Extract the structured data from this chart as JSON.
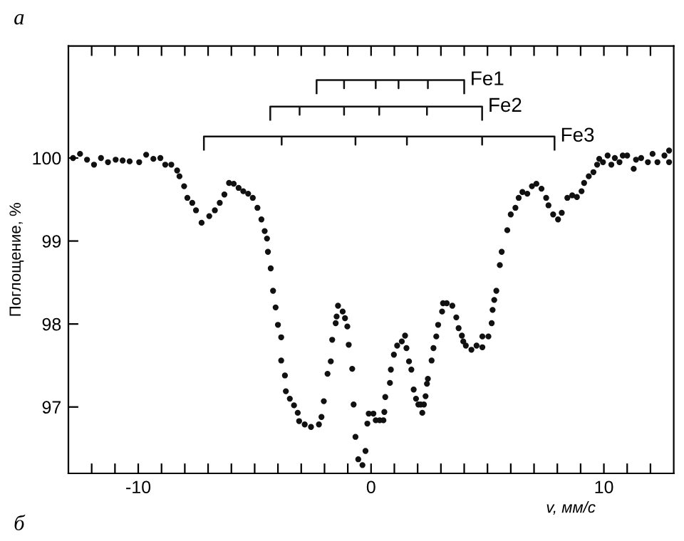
{
  "chart_data": {
    "type": "scatter",
    "xlabel": "v, мм/с",
    "ylabel": "Поглощение, %",
    "annotations": [
      "а",
      "б",
      {
        "text": "Fe1",
        "x": 4.0,
        "y": 100.94
      },
      {
        "text": "Fe2",
        "x": 4.77,
        "y": 100.62
      },
      {
        "text": "Fe3",
        "x": 7.88,
        "y": 100.26
      }
    ],
    "xlim": [
      -13,
      13
    ],
    "ylim": [
      96.2,
      101.35
    ],
    "xticks": [
      {
        "value": -12,
        "label": null
      },
      {
        "value": -11,
        "label": null
      },
      -10,
      {
        "value": -9,
        "label": null
      },
      {
        "value": -8,
        "label": null
      },
      {
        "value": -7,
        "label": null
      },
      {
        "value": -6,
        "label": null
      },
      {
        "value": -5,
        "label": null
      },
      {
        "value": -4,
        "label": null
      },
      {
        "value": -3,
        "label": null
      },
      {
        "value": -2,
        "label": null
      },
      {
        "value": -1,
        "label": null
      },
      0,
      {
        "value": 1,
        "label": null
      },
      {
        "value": 2,
        "label": null
      },
      {
        "value": 3,
        "label": null
      },
      {
        "value": 4,
        "label": null
      },
      {
        "value": 5,
        "label": null
      },
      {
        "value": 6,
        "label": null
      },
      {
        "value": 7,
        "label": null
      },
      {
        "value": 8,
        "label": null
      },
      {
        "value": 9,
        "label": null
      },
      10,
      {
        "value": 11,
        "label": null
      },
      {
        "value": 12,
        "label": null
      }
    ],
    "yticks": [
      97,
      98,
      99,
      100
    ],
    "grid": false,
    "legend": false,
    "marker": "circle",
    "series": [
      {
        "color": "#111111",
        "x": [
          -12.8,
          -12.5,
          -12.2,
          -11.9,
          -11.6,
          -11.3,
          -10.97,
          -10.67,
          -10.37,
          -9.96,
          -9.66,
          -9.35,
          -9.05,
          -8.84,
          -8.58,
          -8.33,
          -8.23,
          -8.03,
          -7.89,
          -7.68,
          -7.52,
          -7.28,
          -6.95,
          -6.71,
          -6.5,
          -6.3,
          -6.1,
          -5.9,
          -5.69,
          -5.49,
          -5.28,
          -5.08,
          -4.88,
          -4.71,
          -4.57,
          -4.47,
          -4.43,
          -4.31,
          -4.21,
          -4.1,
          -4.0,
          -3.86,
          -3.86,
          -3.7,
          -3.66,
          -3.49,
          -3.31,
          -3.15,
          -3.09,
          -2.85,
          -2.58,
          -2.24,
          -2.13,
          -2.03,
          -1.87,
          -1.73,
          -1.67,
          -1.52,
          -1.48,
          -1.42,
          -1.22,
          -1.12,
          -1.02,
          -0.96,
          -0.81,
          -0.75,
          -0.67,
          -0.55,
          -0.37,
          -0.24,
          -0.16,
          -0.1,
          0.1,
          0.2,
          0.37,
          0.53,
          0.57,
          0.61,
          0.81,
          0.85,
          0.98,
          1.12,
          1.32,
          1.46,
          1.52,
          1.63,
          1.73,
          1.83,
          1.93,
          2.03,
          2.13,
          2.2,
          2.27,
          2.34,
          2.4,
          2.44,
          2.6,
          2.68,
          2.8,
          2.88,
          3.05,
          3.09,
          3.25,
          3.49,
          3.66,
          3.76,
          3.9,
          3.96,
          4.07,
          4.31,
          4.53,
          4.78,
          4.78,
          5.04,
          5.18,
          5.22,
          5.29,
          5.38,
          5.53,
          5.61,
          5.85,
          6.0,
          6.2,
          6.34,
          6.5,
          6.71,
          6.91,
          7.1,
          7.32,
          7.52,
          7.62,
          7.82,
          8.03,
          8.19,
          8.43,
          8.64,
          8.84,
          9.04,
          9.15,
          9.35,
          9.55,
          9.71,
          9.8,
          9.96,
          10.16,
          10.32,
          10.47,
          10.67,
          10.81,
          11.0,
          11.28,
          11.38,
          11.6,
          11.89,
          12.09,
          12.3,
          12.6,
          12.8,
          12.8
        ],
        "values": [
          100.0,
          100.05,
          99.98,
          99.92,
          100.0,
          99.95,
          99.98,
          99.97,
          99.96,
          99.95,
          100.04,
          99.99,
          100.0,
          99.92,
          99.92,
          99.85,
          99.78,
          99.66,
          99.52,
          99.46,
          99.37,
          99.22,
          99.3,
          99.37,
          99.46,
          99.56,
          99.7,
          99.69,
          99.64,
          99.6,
          99.57,
          99.52,
          99.4,
          99.26,
          99.12,
          99.03,
          98.87,
          98.67,
          98.4,
          98.2,
          97.99,
          97.84,
          97.56,
          97.38,
          97.19,
          97.1,
          97.02,
          96.93,
          96.83,
          96.79,
          96.76,
          96.79,
          96.88,
          97.07,
          97.4,
          97.55,
          97.81,
          98.01,
          98.09,
          98.22,
          98.15,
          98.07,
          97.97,
          97.75,
          97.46,
          97.03,
          96.64,
          96.37,
          96.3,
          96.47,
          96.8,
          96.92,
          96.92,
          96.84,
          96.84,
          96.84,
          96.94,
          97.12,
          97.29,
          97.45,
          97.63,
          97.74,
          97.79,
          97.86,
          97.71,
          97.55,
          97.45,
          97.21,
          97.1,
          97.03,
          97.03,
          96.93,
          97.03,
          97.13,
          97.28,
          97.34,
          97.56,
          97.71,
          97.85,
          97.99,
          98.15,
          98.25,
          98.25,
          98.22,
          98.08,
          97.95,
          97.86,
          97.79,
          97.74,
          97.69,
          97.74,
          97.72,
          97.85,
          97.85,
          98.01,
          98.17,
          98.29,
          98.4,
          98.71,
          98.87,
          99.13,
          99.32,
          99.4,
          99.52,
          99.59,
          99.57,
          99.66,
          99.69,
          99.63,
          99.52,
          99.43,
          99.32,
          99.26,
          99.34,
          99.52,
          99.55,
          99.53,
          99.6,
          99.7,
          99.78,
          99.83,
          99.92,
          99.99,
          99.95,
          100.03,
          99.92,
          100.0,
          99.95,
          100.03,
          100.03,
          99.87,
          99.98,
          100.0,
          99.95,
          100.05,
          99.95,
          100.03,
          100.09,
          99.95
        ]
      },
      {
        "type": "line",
        "color": "#111111",
        "marker": "none",
        "x": [
          -2.34,
          -2.34,
          -1.16,
          -1.16,
          -1.16,
          0.2,
          0.2,
          0.2,
          1.18,
          1.18,
          1.18,
          2.44,
          2.44,
          2.44,
          4.0,
          4.0
        ],
        "values": [
          100.78,
          100.94,
          100.94,
          100.84,
          100.94,
          100.94,
          100.84,
          100.94,
          100.94,
          100.84,
          100.94,
          100.94,
          100.84,
          100.94,
          100.94,
          100.78
        ]
      },
      {
        "type": "line",
        "color": "#111111",
        "marker": "none",
        "x": [
          -4.33,
          -4.33,
          -3.07,
          -3.07,
          -3.07,
          -1.16,
          -1.16,
          -1.16,
          0.35,
          0.35,
          0.35,
          2.4,
          2.4,
          2.4,
          4.77,
          4.77
        ],
        "values": [
          100.46,
          100.62,
          100.62,
          100.52,
          100.62,
          100.62,
          100.52,
          100.62,
          100.62,
          100.52,
          100.62,
          100.62,
          100.52,
          100.62,
          100.62,
          100.46
        ]
      },
      {
        "type": "line",
        "color": "#111111",
        "marker": "none",
        "x": [
          -7.18,
          -7.18,
          -3.84,
          -3.84,
          -3.84,
          -0.67,
          -0.67,
          -0.67,
          1.54,
          1.54,
          1.54,
          4.77,
          4.77,
          4.77,
          7.88,
          7.88
        ],
        "values": [
          100.1,
          100.26,
          100.26,
          100.16,
          100.26,
          100.26,
          100.16,
          100.26,
          100.26,
          100.16,
          100.26,
          100.26,
          100.16,
          100.26,
          100.26,
          100.1
        ]
      }
    ]
  }
}
